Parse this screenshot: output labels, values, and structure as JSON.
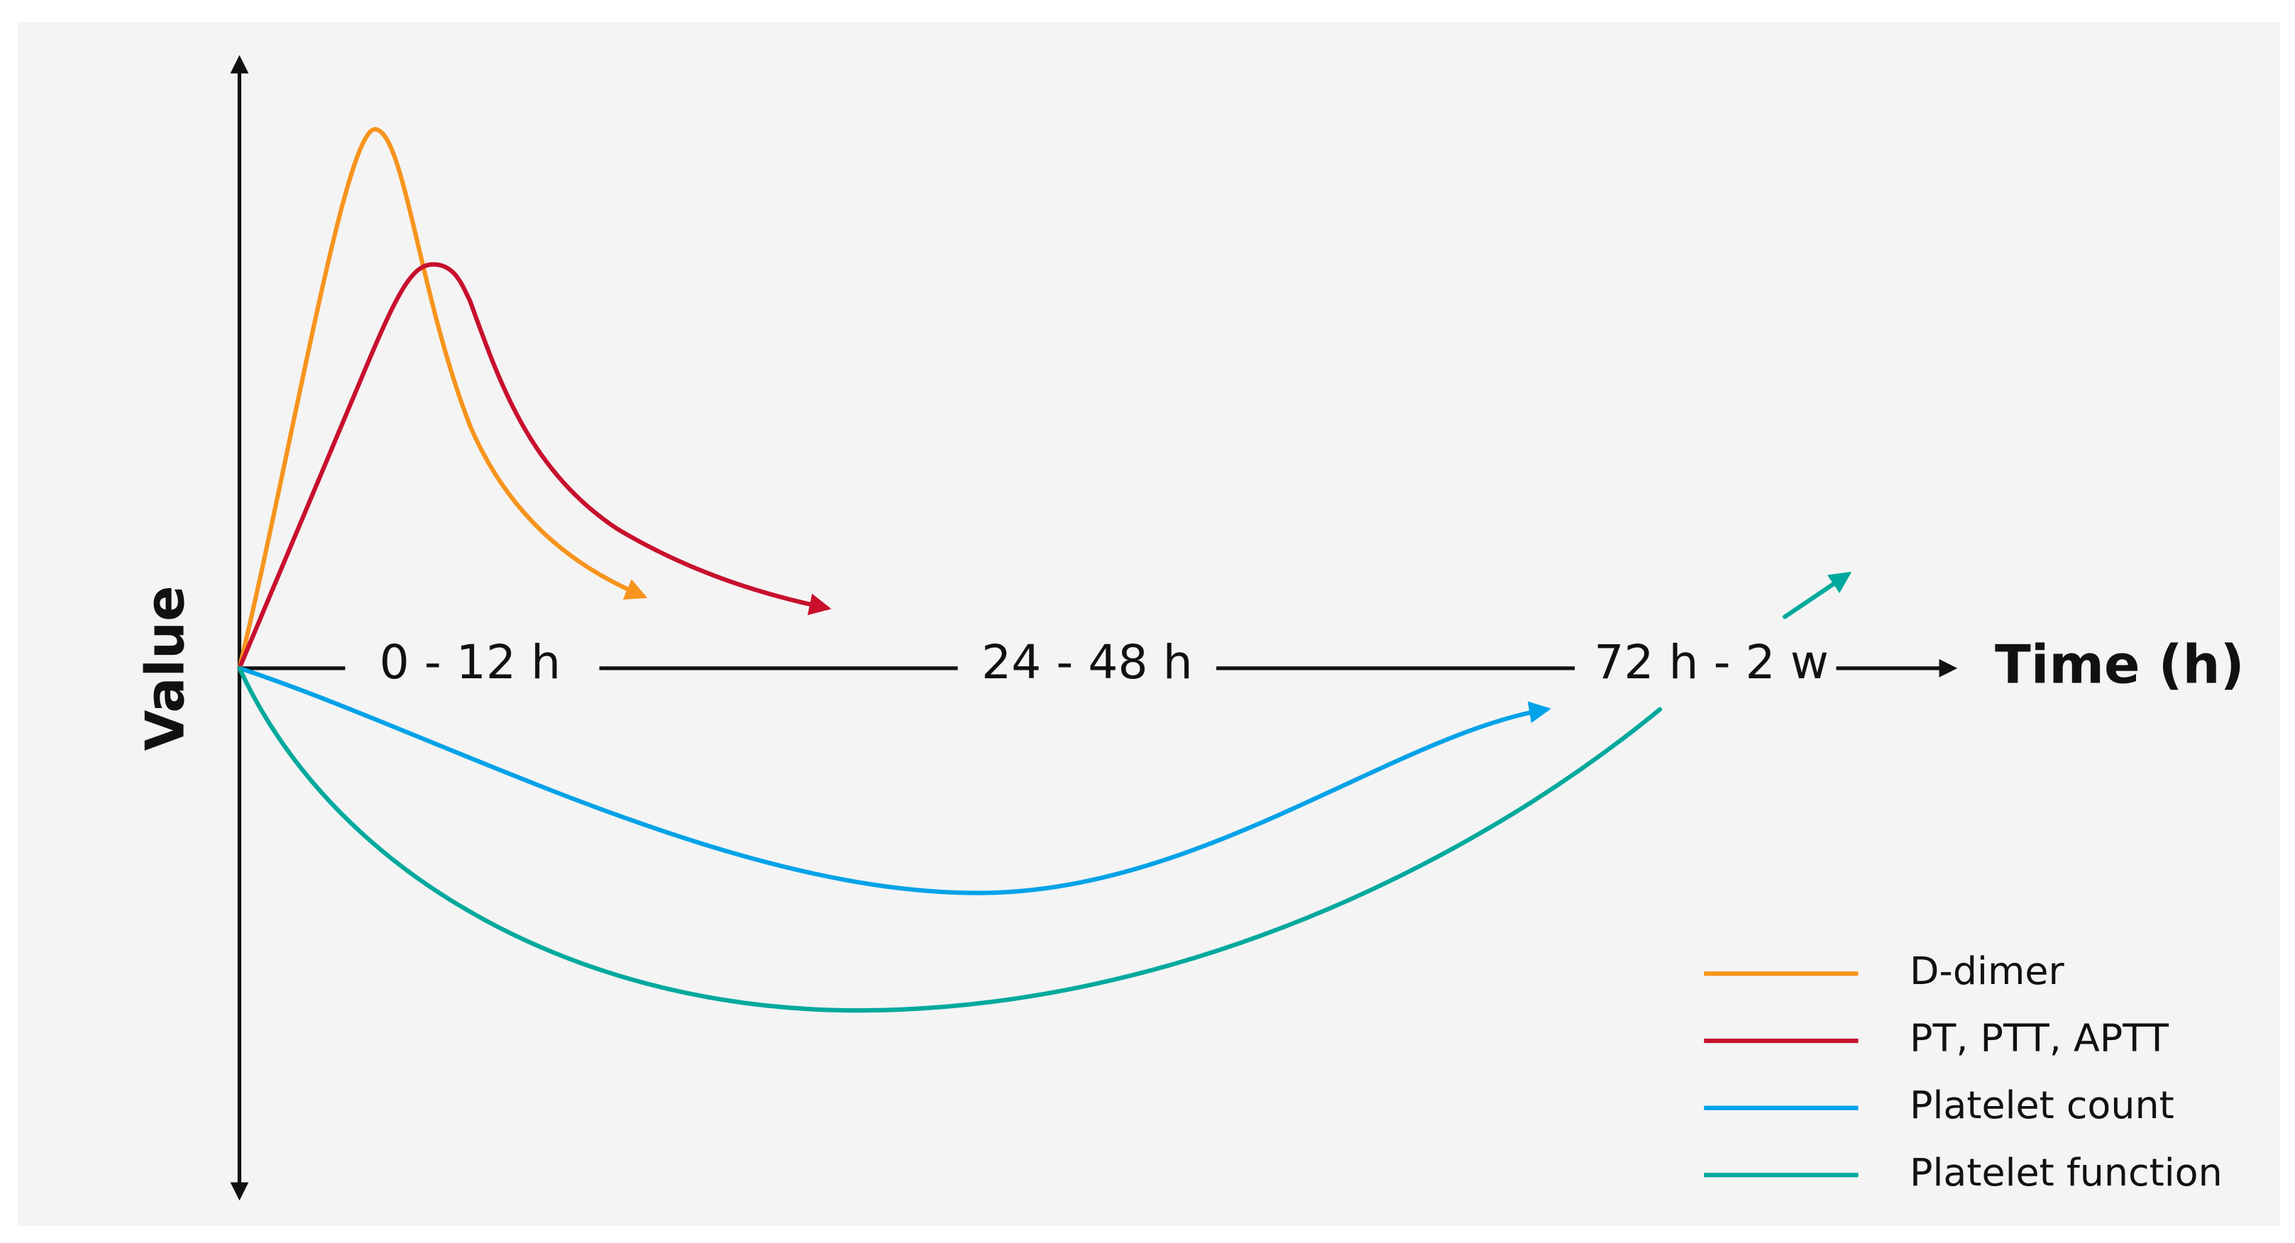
{
  "axes": {
    "y_label": "Value",
    "x_label": "Time (h)",
    "intervals": [
      "0 - 12 h",
      "24 - 48 h",
      "72 h - 2 w"
    ]
  },
  "legend": [
    {
      "name": "D-dimer",
      "color": "#f7941d"
    },
    {
      "name": "PT, PTT, APTT",
      "color": "#c8102e"
    },
    {
      "name": "Platelet count",
      "color": "#00a2e8"
    },
    {
      "name": "Platelet function",
      "color": "#00a99d"
    }
  ]
}
